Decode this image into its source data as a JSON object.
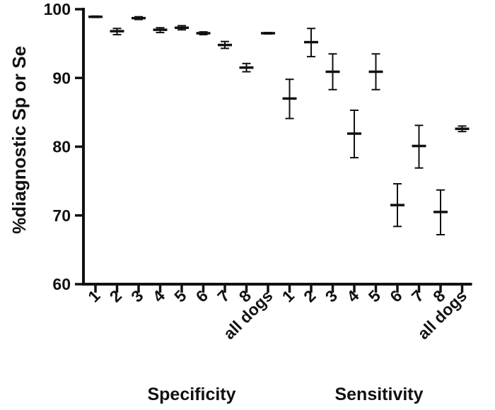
{
  "chart_data": {
    "type": "scatter",
    "ylabel": "%diagnostic Sp or Se",
    "ylim": [
      60,
      100
    ],
    "yticks": [
      60,
      70,
      80,
      90,
      100
    ],
    "grid": false,
    "groups": [
      {
        "name": "Specificity",
        "categories": [
          "1",
          "2",
          "3",
          "4",
          "5",
          "6",
          "7",
          "8",
          "all dogs"
        ],
        "mean": [
          98.9,
          96.8,
          98.7,
          97.0,
          97.3,
          96.5,
          94.8,
          91.5,
          96.5
        ],
        "lower": [
          98.8,
          96.3,
          98.5,
          96.6,
          97.0,
          96.3,
          94.3,
          90.9,
          96.4
        ],
        "upper": [
          99.0,
          97.2,
          98.9,
          97.3,
          97.6,
          96.7,
          95.3,
          92.1,
          96.6
        ]
      },
      {
        "name": "Sensitivity",
        "categories": [
          "1",
          "2",
          "3",
          "4",
          "5",
          "6",
          "7",
          "8",
          "all dogs"
        ],
        "mean": [
          87.0,
          95.2,
          90.9,
          81.9,
          90.9,
          71.5,
          80.1,
          70.5,
          82.6
        ],
        "lower": [
          84.1,
          93.1,
          88.3,
          78.4,
          88.3,
          68.4,
          76.9,
          67.2,
          82.2
        ],
        "upper": [
          89.8,
          97.2,
          93.5,
          85.3,
          93.5,
          74.6,
          83.1,
          73.7,
          83.0
        ]
      }
    ]
  }
}
